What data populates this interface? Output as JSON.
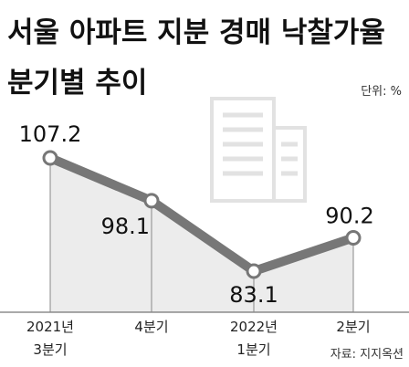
{
  "chart_data": {
    "type": "line",
    "title": "서울 아파트 지분 경매 낙찰가율",
    "subtitle": "분기별 추이",
    "unit": "단위: %",
    "source": "자료: 지지옥션",
    "categories": [
      "2021년\n3분기",
      "4분기",
      "2022년\n1분기",
      "2분기"
    ],
    "values": [
      107.2,
      98.1,
      83.1,
      90.2
    ],
    "color": "#777777"
  }
}
